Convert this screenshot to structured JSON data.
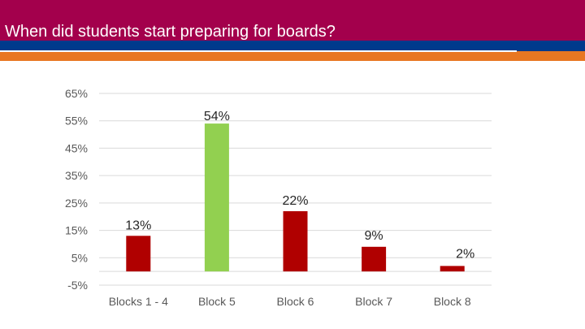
{
  "slide": {
    "title": "When did students start preparing for boards?"
  },
  "colors": {
    "header_bg": "#A3004C",
    "stripe_blue": "#003A8C",
    "stripe_orange": "#E87722",
    "bar_default": "#B00000",
    "bar_highlight": "#92D050",
    "gridline": "#D9D9D9",
    "axis_text": "#595959"
  },
  "chart_data": {
    "type": "bar",
    "title": "",
    "xlabel": "",
    "ylabel": "",
    "categories": [
      "Blocks 1 - 4",
      "Block 5",
      "Block 6",
      "Block 7",
      "Block 8"
    ],
    "values": [
      13,
      54,
      22,
      9,
      2
    ],
    "data_labels": [
      "13%",
      "54%",
      "22%",
      "9%",
      "2%"
    ],
    "highlight_category": "Block 5",
    "ylim": [
      -5,
      65
    ],
    "yticks": [
      -5,
      5,
      15,
      25,
      35,
      45,
      55,
      65
    ],
    "ytick_labels": [
      "-5%",
      "5%",
      "15%",
      "25%",
      "35%",
      "45%",
      "55%",
      "65%"
    ],
    "grid": true,
    "legend": "none"
  }
}
